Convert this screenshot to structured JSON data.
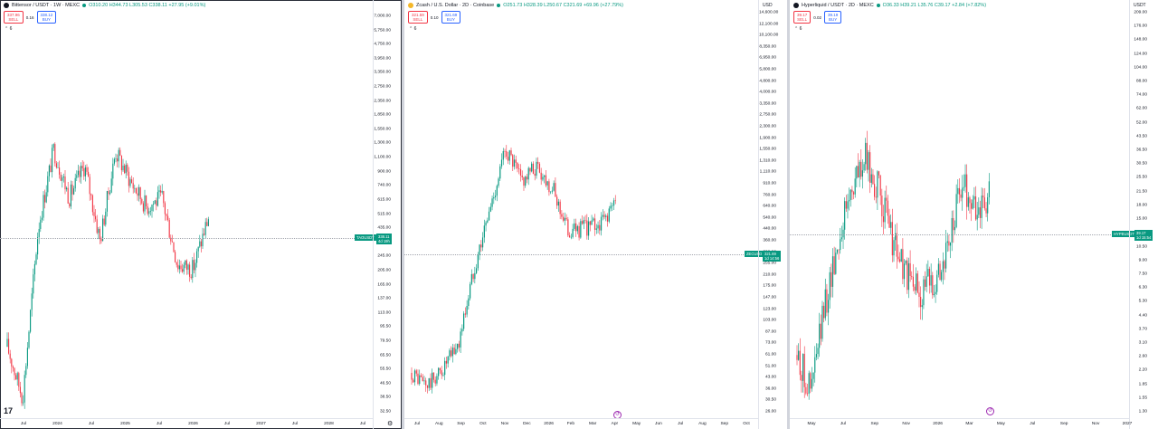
{
  "panes": [
    {
      "header": {
        "title": "Bittensor / USDT · 1W · MEXC",
        "logo_color": "#131722",
        "ohlc": "O310.20 H344.73 L305.53 C338.11 +27.95 (+9.01%)"
      },
      "sell": {
        "price": "337.96",
        "label": "SELL"
      },
      "spread": "0.16",
      "buy": {
        "price": "338.12",
        "label": "BUY"
      },
      "collapse": "⌃ 6",
      "yaxis_head": "",
      "yticks": [
        "7,000.00",
        "5,750.00",
        "4,750.00",
        "3,950.00",
        "3,350.00",
        "2,750.00",
        "2,350.00",
        "1,850.00",
        "1,550.00",
        "1,300.00",
        "1,100.00",
        "900.00",
        "740.00",
        "615.00",
        "515.00",
        "435.00",
        "360.00",
        "245.00",
        "205.00",
        "165.00",
        "137.00",
        "113.00",
        "95.50",
        "79.50",
        "65.50",
        "55.50",
        "46.50",
        "38.50",
        "32.50"
      ],
      "xticks": [
        "Jul",
        "2024",
        "Jul",
        "2025",
        "Jul",
        "2026",
        "Jul",
        "2027",
        "Jul",
        "2028",
        "Jul"
      ],
      "tag": {
        "symbol": "TAOUSDT",
        "price": "338.11",
        "change": "4d 19h"
      }
    },
    {
      "header": {
        "title": "Zcash / U.S. Dollar · 2D · Coinbase",
        "logo_color": "#f4b728",
        "ohlc": "O251.73 H328.39 L250.67 C321.69 +69.96 (+27.79%)"
      },
      "sell": {
        "price": "321.59",
        "label": "SELL"
      },
      "spread": "0.10",
      "buy": {
        "price": "321.69",
        "label": "BUY"
      },
      "collapse": "⌃ 6",
      "yaxis_head": "USD",
      "yticks": [
        "14,600.00",
        "12,100.00",
        "10,100.00",
        "8,350.00",
        "6,950.00",
        "5,800.00",
        "4,800.00",
        "4,000.00",
        "3,350.00",
        "2,750.00",
        "2,300.00",
        "1,900.00",
        "1,550.00",
        "1,310.00",
        "1,110.00",
        "910.00",
        "760.00",
        "640.00",
        "540.00",
        "440.00",
        "360.00",
        "300.00",
        "255.00",
        "210.00",
        "175.00",
        "147.00",
        "123.00",
        "103.00",
        "87.00",
        "73.00",
        "61.00",
        "51.00",
        "43.00",
        "36.00",
        "30.50",
        "26.00"
      ],
      "xticks": [
        "Jul",
        "Aug",
        "Sep",
        "Oct",
        "Nov",
        "Dec",
        "2026",
        "Feb",
        "Mar",
        "Apr",
        "May",
        "Jun",
        "Jul",
        "Aug",
        "Sep",
        "Oct"
      ],
      "tag": {
        "symbol": "ZECUSD",
        "price": "321.69",
        "change": "1d 14:56"
      }
    },
    {
      "header": {
        "title": "Hyperliquid / USDT · 2D · MEXC",
        "logo_color": "#131722",
        "ohlc": "O36.33 H39.21 L35.76 C39.17 +2.84 (+7.82%)"
      },
      "sell": {
        "price": "39.17",
        "label": "SELL"
      },
      "spread": "0.02",
      "buy": {
        "price": "39.19",
        "label": "BUY"
      },
      "collapse": "⌃ 6",
      "yaxis_head": "USDT",
      "yticks": [
        "209.00",
        "176.00",
        "148.00",
        "124.00",
        "104.00",
        "88.00",
        "74.00",
        "62.00",
        "52.00",
        "43.50",
        "36.50",
        "30.50",
        "25.50",
        "21.50",
        "18.00",
        "15.00",
        "12.50",
        "10.50",
        "9.00",
        "7.50",
        "6.30",
        "5.30",
        "4.40",
        "3.70",
        "3.10",
        "2.60",
        "2.20",
        "1.85",
        "1.55",
        "1.30"
      ],
      "xticks": [
        "May",
        "Jul",
        "Sep",
        "Nov",
        "2026",
        "Mar",
        "May",
        "Jul",
        "Sep",
        "Nov",
        "2027"
      ],
      "tag": {
        "symbol": "HYPEUSDT",
        "price": "39.17",
        "change": "1d 15:54"
      }
    }
  ],
  "chart_data": [
    {
      "type": "candlestick",
      "title": "Bittensor / USDT · 1W · MEXC",
      "ylabel": "",
      "scale": "log",
      "x": [
        "Jul",
        "2024",
        "Jul",
        "2025",
        "Jul",
        "2026"
      ],
      "close_path": [
        80,
        45,
        300,
        720,
        420,
        600,
        260,
        700,
        500,
        380,
        420,
        200,
        190,
        338
      ],
      "last": 338.11
    },
    {
      "type": "candlestick",
      "title": "Zcash / U.S. Dollar · 2D · Coinbase",
      "ylabel": "USD",
      "scale": "log",
      "x": [
        "Jul",
        "Aug",
        "Sep",
        "Oct",
        "Nov",
        "Dec",
        "2026",
        "Feb",
        "Mar",
        "Apr"
      ],
      "close_path": [
        42,
        36,
        44,
        60,
        150,
        300,
        620,
        420,
        500,
        380,
        230,
        240,
        250,
        322
      ],
      "last": 321.69
    },
    {
      "type": "candlestick",
      "title": "Hyperliquid / USDT · 2D · MEXC",
      "ylabel": "USDT",
      "scale": "log",
      "x": [
        "May",
        "Jul",
        "Sep",
        "Nov",
        "2026",
        "Mar"
      ],
      "close_path": [
        15,
        12,
        20,
        30,
        42,
        49,
        40,
        30,
        24,
        22,
        24,
        28,
        43,
        36,
        39
      ],
      "last": 39.17
    }
  ],
  "colors": {
    "up": "#089981",
    "down": "#f23645",
    "tag": "#089981",
    "goto": "#9c27b0"
  },
  "icons": {
    "settings": "gear-icon",
    "goto": "goto-realtime-icon",
    "logo": "tradingview-logo-icon"
  }
}
